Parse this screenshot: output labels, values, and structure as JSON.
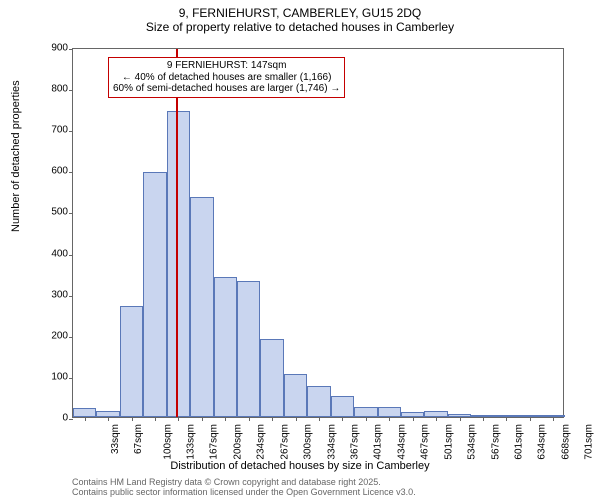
{
  "title_line1": "9, FERNIEHURST, CAMBERLEY, GU15 2DQ",
  "title_line2": "Size of property relative to detached houses in Camberley",
  "ylabel": "Number of detached properties",
  "xlabel": "Distribution of detached houses by size in Camberley",
  "attribution_line1": "Contains HM Land Registry data © Crown copyright and database right 2025.",
  "attribution_line2": "Contains public sector information licensed under the Open Government Licence v3.0.",
  "chart": {
    "type": "histogram",
    "ylim": [
      0,
      900
    ],
    "ytick_step": 100,
    "yticks": [
      0,
      100,
      200,
      300,
      400,
      500,
      600,
      700,
      800,
      900
    ],
    "categories": [
      "33sqm",
      "67sqm",
      "100sqm",
      "133sqm",
      "167sqm",
      "200sqm",
      "234sqm",
      "267sqm",
      "300sqm",
      "334sqm",
      "367sqm",
      "401sqm",
      "434sqm",
      "467sqm",
      "501sqm",
      "534sqm",
      "567sqm",
      "601sqm",
      "634sqm",
      "668sqm",
      "701sqm"
    ],
    "values": [
      22,
      15,
      270,
      595,
      745,
      535,
      340,
      330,
      190,
      105,
      75,
      50,
      25,
      25,
      12,
      15,
      8,
      2,
      3,
      2,
      2
    ],
    "bar_fill": "#c9d5ef",
    "bar_stroke": "#5a78b8",
    "bar_stroke_width": 1,
    "background_color": "#ffffff",
    "axis_color": "#666666",
    "tick_fontsize": 10,
    "label_fontsize": 11,
    "title_fontsize": 12,
    "attribution_color": "#666666",
    "attribution_fontsize": 9,
    "marker": {
      "x_position_sqm": 147,
      "color": "#c40000",
      "width": 1.5
    },
    "callout": {
      "line1": "9 FERNIEHURST: 147sqm",
      "line2": "← 40% of detached houses are smaller (1,166)",
      "line3": "60% of semi-detached houses are larger (1,746) →",
      "border_color": "#c40000",
      "text_color": "#000000",
      "fontsize": 10
    }
  }
}
